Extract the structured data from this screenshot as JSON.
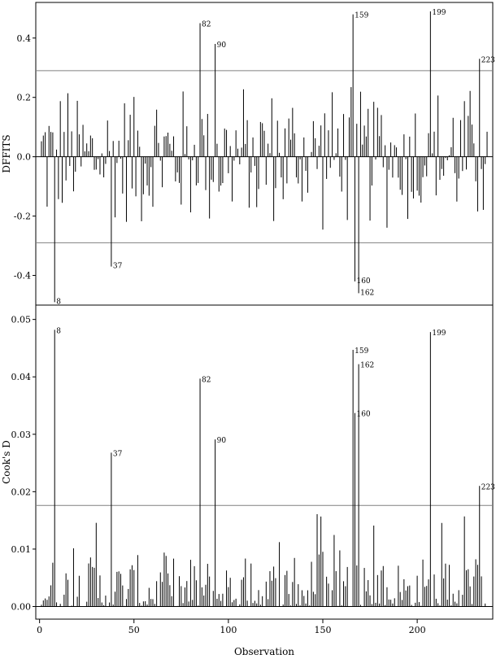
{
  "chart_data": [
    {
      "type": "bar",
      "panel": "top",
      "ylabel": "DFFITS",
      "ylim": [
        -0.5,
        0.52
      ],
      "yticks": [
        0.4,
        0.2,
        0.0,
        -0.2,
        -0.4
      ],
      "ytick_labels": [
        "0.4",
        "0.2",
        "0.0",
        "-0.2",
        "-0.4"
      ],
      "xlim": [
        -2,
        240
      ],
      "cutoffs": [
        0.29,
        -0.29
      ],
      "labeled_points": [
        {
          "x": 8,
          "y": -0.49,
          "label": "8"
        },
        {
          "x": 38,
          "y": -0.37,
          "label": "37"
        },
        {
          "x": 85,
          "y": 0.45,
          "label": "82"
        },
        {
          "x": 93,
          "y": 0.38,
          "label": "90"
        },
        {
          "x": 166,
          "y": 0.48,
          "label": "159"
        },
        {
          "x": 167,
          "y": -0.42,
          "label": "160"
        },
        {
          "x": 169,
          "y": -0.46,
          "label": "162"
        },
        {
          "x": 207,
          "y": 0.49,
          "label": "199"
        },
        {
          "x": 233,
          "y": 0.33,
          "label": "223"
        }
      ]
    },
    {
      "type": "bar",
      "panel": "bottom",
      "ylabel": "Cook's D",
      "xlabel": "Observation",
      "ylim": [
        -0.0022,
        0.0525
      ],
      "yticks": [
        0.0,
        0.01,
        0.02,
        0.03,
        0.04,
        0.05
      ],
      "ytick_labels": [
        "0.00",
        "0.01",
        "0.02",
        "0.03",
        "0.04",
        "0.05"
      ],
      "xlim": [
        -2,
        240
      ],
      "xticks": [
        0,
        50,
        100,
        150,
        200
      ],
      "xtick_labels": [
        "0",
        "50",
        "100",
        "150",
        "200"
      ],
      "cutoffs": [
        0.0176
      ],
      "labeled_points": [
        {
          "x": 8,
          "y": 0.0482,
          "label": "8"
        },
        {
          "x": 38,
          "y": 0.0268,
          "label": "37"
        },
        {
          "x": 85,
          "y": 0.0397,
          "label": "82"
        },
        {
          "x": 93,
          "y": 0.0291,
          "label": "90"
        },
        {
          "x": 166,
          "y": 0.0447,
          "label": "159"
        },
        {
          "x": 167,
          "y": 0.0337,
          "label": "160"
        },
        {
          "x": 169,
          "y": 0.0422,
          "label": "162"
        },
        {
          "x": 207,
          "y": 0.0478,
          "label": "199"
        },
        {
          "x": 233,
          "y": 0.021,
          "label": "223"
        }
      ]
    }
  ]
}
